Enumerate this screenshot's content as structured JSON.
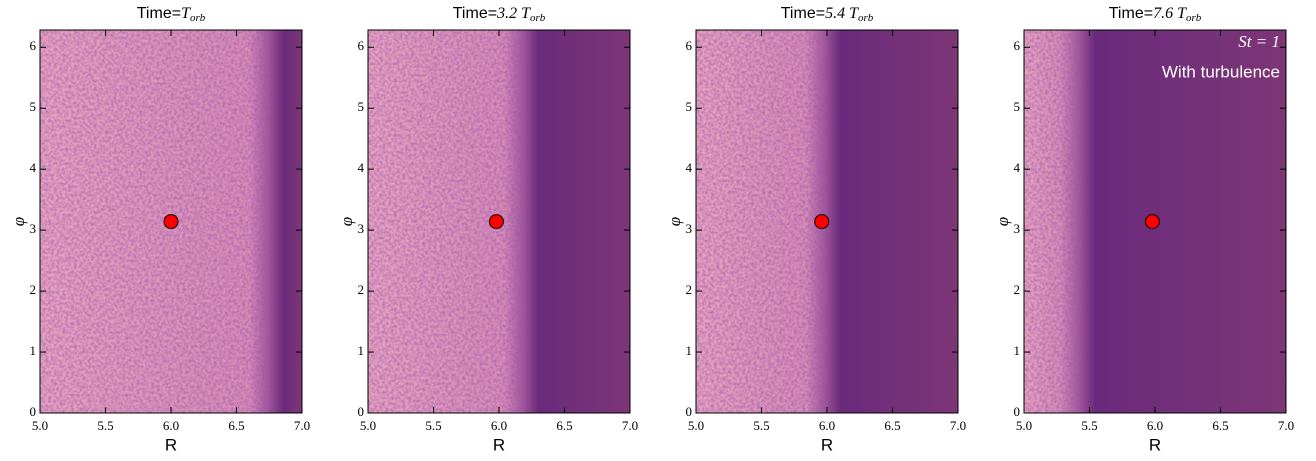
{
  "chart_data": [
    {
      "type": "scatter",
      "title": "Time=",
      "title_math": "T",
      "title_sub": "orb",
      "x_label": "R",
      "y_label": "φ",
      "x": [
        6.0
      ],
      "values": [
        3.14
      ],
      "color": "#ff0000",
      "xlim": [
        5.0,
        7.0
      ],
      "ylim": [
        0,
        6.283
      ],
      "xticks": [
        {
          "value": 5.0,
          "label": "5.0"
        },
        {
          "value": 5.5,
          "label": "5.5"
        },
        {
          "value": 6.0,
          "label": "6.0"
        },
        {
          "value": 6.5,
          "label": "6.5"
        },
        {
          "value": 7.0,
          "label": "7.0"
        }
      ],
      "yticks": [
        0,
        1,
        2,
        3,
        4,
        5,
        6
      ]
    },
    {
      "type": "scatter",
      "title": "Time=",
      "title_math": "3.2 T",
      "title_sub": "orb",
      "x_label": "R",
      "y_label": "φ",
      "x": [
        5.98
      ],
      "values": [
        3.14
      ],
      "color": "#ff0000",
      "xlim": [
        5.0,
        7.0
      ],
      "ylim": [
        0,
        6.283
      ],
      "xticks": [
        {
          "value": 5.0,
          "label": "5.0"
        },
        {
          "value": 5.5,
          "label": "5.5"
        },
        {
          "value": 6.0,
          "label": "6.0"
        },
        {
          "value": 6.5,
          "label": "6.5"
        },
        {
          "value": 7.0,
          "label": "7.0"
        }
      ],
      "yticks": [
        0,
        1,
        2,
        3,
        4,
        5,
        6
      ]
    },
    {
      "type": "scatter",
      "title": "Time=",
      "title_math": "5.4 T",
      "title_sub": "orb",
      "x_label": "R",
      "y_label": "φ",
      "x": [
        5.96
      ],
      "values": [
        3.14
      ],
      "color": "#ff0000",
      "xlim": [
        5.0,
        7.0
      ],
      "ylim": [
        0,
        6.283
      ],
      "xticks": [
        {
          "value": 5.0,
          "label": "5.0"
        },
        {
          "value": 5.5,
          "label": "5.5"
        },
        {
          "value": 6.0,
          "label": "6.0"
        },
        {
          "value": 6.5,
          "label": "6.5"
        },
        {
          "value": 7.0,
          "label": "7.0"
        }
      ],
      "yticks": [
        0,
        1,
        2,
        3,
        4,
        5,
        6
      ]
    },
    {
      "type": "scatter",
      "title": "Time=",
      "title_math": "7.6 T",
      "title_sub": "orb",
      "x_label": "R",
      "y_label": "φ",
      "x": [
        5.98
      ],
      "values": [
        3.14
      ],
      "color": "#ff0000",
      "xlim": [
        5.0,
        7.0
      ],
      "ylim": [
        0,
        6.283
      ],
      "xticks": [
        {
          "value": 5.0,
          "label": "5.0"
        },
        {
          "value": 5.5,
          "label": "5.5"
        },
        {
          "value": 6.0,
          "label": "6.0"
        },
        {
          "value": 6.5,
          "label": "6.5"
        },
        {
          "value": 7.0,
          "label": "7.0"
        }
      ],
      "yticks": [
        0,
        1,
        2,
        3,
        4,
        5,
        6
      ],
      "annotations": [
        "St = 1",
        "With turbulence"
      ]
    }
  ]
}
